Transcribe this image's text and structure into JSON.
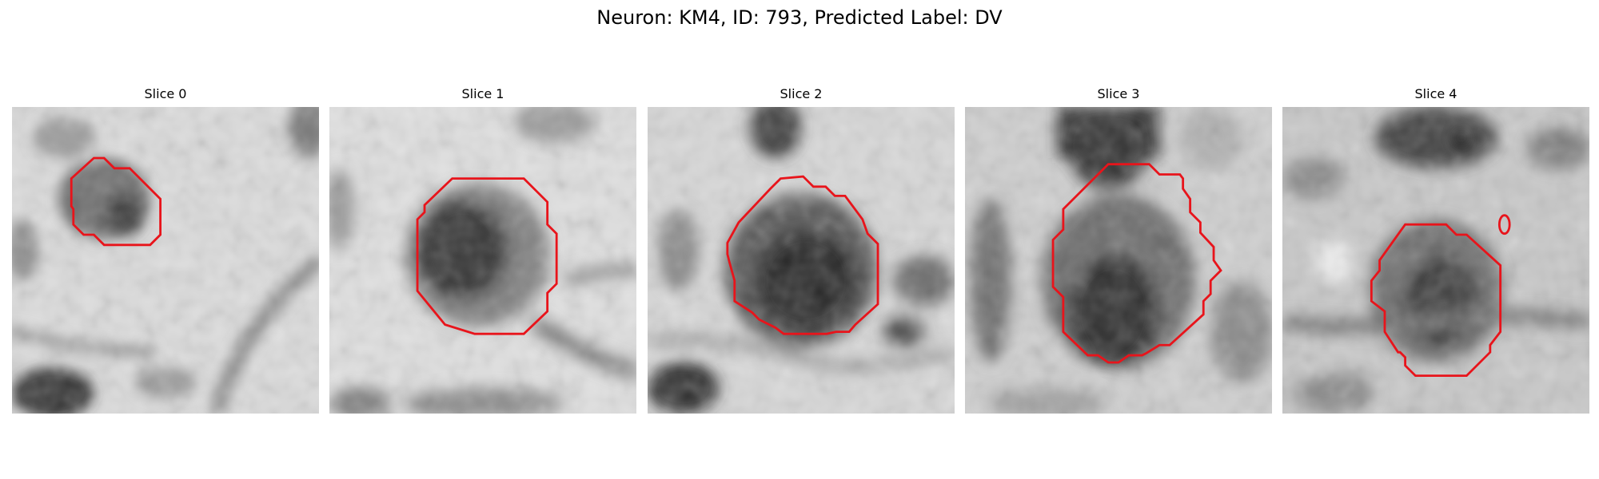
{
  "figure": {
    "title": "Neuron: KM4, ID: 793, Predicted Label: DV"
  },
  "outline_color": "#e8141b",
  "panels": [
    {
      "title": "Slice 0"
    },
    {
      "title": "Slice 1"
    },
    {
      "title": "Slice 2"
    },
    {
      "title": "Slice 3"
    },
    {
      "title": "Slice 4"
    }
  ]
}
